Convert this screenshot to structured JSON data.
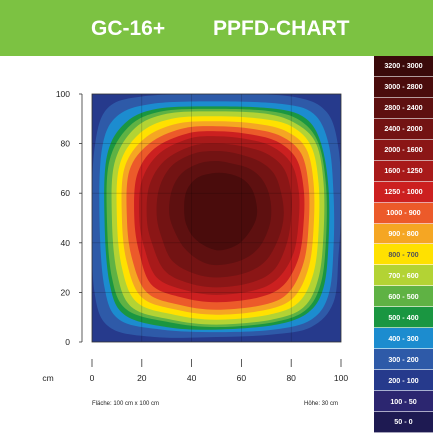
{
  "header": {
    "title_left": "GC-16+",
    "title_right": "PPFD-CHART",
    "background": "#7cc242"
  },
  "legend": [
    {
      "label": "3200 - 3000",
      "color": "#3a0a0a",
      "text_color": "#ffffff"
    },
    {
      "label": "3000 - 2800",
      "color": "#4a0c0c",
      "text_color": "#ffffff"
    },
    {
      "label": "2800 - 2400",
      "color": "#5e1010",
      "text_color": "#ffffff"
    },
    {
      "label": "2400 - 2000",
      "color": "#731313",
      "text_color": "#ffffff"
    },
    {
      "label": "2000 - 1600",
      "color": "#8b1616",
      "text_color": "#ffffff"
    },
    {
      "label": "1600 - 1250",
      "color": "#a81a1a",
      "text_color": "#ffffff"
    },
    {
      "label": "1250 - 1000",
      "color": "#cc2020",
      "text_color": "#ffffff"
    },
    {
      "label": "1000 - 900",
      "color": "#ec5a2a",
      "text_color": "#ffffff"
    },
    {
      "label": "900 - 800",
      "color": "#f5a623",
      "text_color": "#ffffff"
    },
    {
      "label": "800 - 700",
      "color": "#ffe100",
      "text_color": "#555555"
    },
    {
      "label": "700 - 600",
      "color": "#b3d334",
      "text_color": "#ffffff"
    },
    {
      "label": "600 - 500",
      "color": "#5fb244",
      "text_color": "#ffffff"
    },
    {
      "label": "500 - 400",
      "color": "#1a9641",
      "text_color": "#ffffff"
    },
    {
      "label": "400 - 300",
      "color": "#1c8ccf",
      "text_color": "#ffffff"
    },
    {
      "label": "300 - 200",
      "color": "#2e5aa8",
      "text_color": "#ffffff"
    },
    {
      "label": "200 - 100",
      "color": "#263a8c",
      "text_color": "#ffffff"
    },
    {
      "label": "100 - 50",
      "color": "#2c2670",
      "text_color": "#ffffff"
    },
    {
      "label": "50 - 0",
      "color": "#1e1a52",
      "text_color": "#ffffff"
    }
  ],
  "chart_data": {
    "type": "heatmap",
    "title": "PPFD-CHART",
    "xlabel": "cm",
    "ylabel": "",
    "xlim": [
      0,
      100
    ],
    "ylim": [
      0,
      100
    ],
    "x_ticks": [
      0,
      20,
      40,
      60,
      80,
      100
    ],
    "y_ticks": [
      0,
      20,
      40,
      60,
      80,
      100
    ],
    "grid": true,
    "legend_position": "right",
    "contours": [
      {
        "level": "200 - 100",
        "color": "#263a8c",
        "points": [
          [
            0,
            0
          ],
          [
            100,
            0
          ],
          [
            100,
            100
          ],
          [
            0,
            100
          ]
        ]
      },
      {
        "level": "300 - 200",
        "color": "#2e5aa8",
        "points": [
          [
            50,
            2
          ],
          [
            72,
            3
          ],
          [
            88,
            6
          ],
          [
            97,
            16
          ],
          [
            99,
            35
          ],
          [
            100,
            55
          ],
          [
            99,
            78
          ],
          [
            94,
            93
          ],
          [
            80,
            99
          ],
          [
            50,
            100
          ],
          [
            20,
            99
          ],
          [
            6,
            94
          ],
          [
            1,
            78
          ],
          [
            0,
            50
          ],
          [
            1,
            20
          ],
          [
            7,
            6
          ],
          [
            25,
            2
          ]
        ]
      },
      {
        "level": "400 - 300",
        "color": "#1c8ccf",
        "points": [
          [
            50,
            4
          ],
          [
            73,
            5
          ],
          [
            88,
            9
          ],
          [
            95,
            19
          ],
          [
            97,
            38
          ],
          [
            97,
            60
          ],
          [
            95,
            80
          ],
          [
            89,
            92
          ],
          [
            76,
            96
          ],
          [
            50,
            97
          ],
          [
            24,
            96
          ],
          [
            10,
            91
          ],
          [
            4,
            78
          ],
          [
            3,
            50
          ],
          [
            5,
            22
          ],
          [
            11,
            9
          ],
          [
            28,
            5
          ]
        ]
      },
      {
        "level": "500 - 400",
        "color": "#1a9641",
        "points": [
          [
            50,
            5
          ],
          [
            74,
            7
          ],
          [
            87,
            12
          ],
          [
            93,
            22
          ],
          [
            95,
            40
          ],
          [
            95,
            62
          ],
          [
            92,
            80
          ],
          [
            86,
            90
          ],
          [
            74,
            94
          ],
          [
            50,
            95
          ],
          [
            26,
            94
          ],
          [
            13,
            88
          ],
          [
            6,
            75
          ],
          [
            5,
            50
          ],
          [
            7,
            24
          ],
          [
            13,
            11
          ],
          [
            30,
            6
          ]
        ]
      },
      {
        "level": "600 - 500",
        "color": "#5fb244",
        "points": [
          [
            50,
            6
          ],
          [
            73,
            8
          ],
          [
            86,
            13
          ],
          [
            92,
            24
          ],
          [
            94,
            42
          ],
          [
            94,
            63
          ],
          [
            91,
            80
          ],
          [
            84,
            89
          ],
          [
            72,
            93
          ],
          [
            50,
            94
          ],
          [
            28,
            93
          ],
          [
            15,
            87
          ],
          [
            7,
            73
          ],
          [
            6,
            50
          ],
          [
            8,
            26
          ],
          [
            14,
            13
          ],
          [
            31,
            8
          ]
        ]
      },
      {
        "level": "700 - 600",
        "color": "#b3d334",
        "points": [
          [
            50,
            7
          ],
          [
            72,
            9
          ],
          [
            85,
            14
          ],
          [
            91,
            26
          ],
          [
            93,
            44
          ],
          [
            93,
            64
          ],
          [
            90,
            80
          ],
          [
            82,
            88
          ],
          [
            70,
            92
          ],
          [
            50,
            93
          ],
          [
            30,
            92
          ],
          [
            17,
            86
          ],
          [
            9,
            72
          ],
          [
            8,
            50
          ],
          [
            10,
            28
          ],
          [
            16,
            14
          ],
          [
            32,
            9
          ]
        ]
      },
      {
        "level": "800 - 700",
        "color": "#ffe100",
        "points": [
          [
            50,
            9
          ],
          [
            71,
            11
          ],
          [
            83,
            16
          ],
          [
            89,
            28
          ],
          [
            91,
            45
          ],
          [
            91,
            64
          ],
          [
            88,
            79
          ],
          [
            80,
            87
          ],
          [
            68,
            90
          ],
          [
            50,
            91
          ],
          [
            32,
            90
          ],
          [
            19,
            84
          ],
          [
            11,
            71
          ],
          [
            10,
            50
          ],
          [
            12,
            30
          ],
          [
            18,
            16
          ],
          [
            33,
            11
          ]
        ]
      },
      {
        "level": "900 - 800",
        "color": "#f5a623",
        "points": [
          [
            50,
            11
          ],
          [
            70,
            13
          ],
          [
            81,
            18
          ],
          [
            87,
            30
          ],
          [
            89,
            46
          ],
          [
            89,
            64
          ],
          [
            86,
            78
          ],
          [
            78,
            85
          ],
          [
            66,
            88
          ],
          [
            50,
            89
          ],
          [
            34,
            88
          ],
          [
            21,
            82
          ],
          [
            13,
            70
          ],
          [
            12,
            50
          ],
          [
            14,
            32
          ],
          [
            20,
            18
          ],
          [
            34,
            13
          ]
        ]
      },
      {
        "level": "1000 - 900",
        "color": "#ec5a2a",
        "points": [
          [
            50,
            13
          ],
          [
            69,
            15
          ],
          [
            79,
            20
          ],
          [
            85,
            32
          ],
          [
            87,
            47
          ],
          [
            87,
            63
          ],
          [
            84,
            76
          ],
          [
            76,
            83
          ],
          [
            64,
            86
          ],
          [
            50,
            87
          ],
          [
            36,
            86
          ],
          [
            23,
            80
          ],
          [
            15,
            69
          ],
          [
            14,
            50
          ],
          [
            16,
            34
          ],
          [
            22,
            20
          ],
          [
            35,
            15
          ]
        ]
      },
      {
        "level": "1250 - 1000",
        "color": "#cc2020",
        "points": [
          [
            50,
            16
          ],
          [
            67,
            18
          ],
          [
            77,
            23
          ],
          [
            83,
            34
          ],
          [
            85,
            48
          ],
          [
            85,
            62
          ],
          [
            82,
            74
          ],
          [
            74,
            81
          ],
          [
            62,
            84
          ],
          [
            50,
            85
          ],
          [
            38,
            84
          ],
          [
            25,
            78
          ],
          [
            18,
            67
          ],
          [
            17,
            50
          ],
          [
            19,
            36
          ],
          [
            24,
            23
          ],
          [
            36,
            18
          ]
        ]
      },
      {
        "level": "1600 - 1250",
        "color": "#a81a1a",
        "points": [
          [
            50,
            19
          ],
          [
            66,
            21
          ],
          [
            75,
            26
          ],
          [
            81,
            36
          ],
          [
            83,
            49
          ],
          [
            83,
            61
          ],
          [
            80,
            72
          ],
          [
            72,
            79
          ],
          [
            61,
            82
          ],
          [
            50,
            83
          ],
          [
            39,
            82
          ],
          [
            27,
            76
          ],
          [
            20,
            65
          ],
          [
            19,
            50
          ],
          [
            21,
            38
          ],
          [
            26,
            26
          ],
          [
            37,
            21
          ]
        ]
      },
      {
        "level": "2000 - 1600",
        "color": "#8b1616",
        "points": [
          [
            50,
            22
          ],
          [
            64,
            24
          ],
          [
            73,
            29
          ],
          [
            78,
            39
          ],
          [
            80,
            50
          ],
          [
            80,
            60
          ],
          [
            77,
            70
          ],
          [
            70,
            76
          ],
          [
            60,
            79
          ],
          [
            50,
            80
          ],
          [
            40,
            79
          ],
          [
            29,
            73
          ],
          [
            23,
            63
          ],
          [
            22,
            50
          ],
          [
            24,
            40
          ],
          [
            29,
            29
          ],
          [
            38,
            24
          ]
        ]
      },
      {
        "level": "2400 - 2000",
        "color": "#731313",
        "points": [
          [
            50,
            26
          ],
          [
            62,
            28
          ],
          [
            70,
            33
          ],
          [
            75,
            42
          ],
          [
            77,
            51
          ],
          [
            76,
            60
          ],
          [
            73,
            68
          ],
          [
            67,
            73
          ],
          [
            58,
            76
          ],
          [
            50,
            77
          ],
          [
            41,
            76
          ],
          [
            32,
            71
          ],
          [
            27,
            62
          ],
          [
            26,
            51
          ],
          [
            28,
            42
          ],
          [
            32,
            33
          ],
          [
            40,
            28
          ]
        ]
      },
      {
        "level": "2800 - 2400",
        "color": "#5e1010",
        "points": [
          [
            50,
            31
          ],
          [
            60,
            33
          ],
          [
            67,
            38
          ],
          [
            71,
            46
          ],
          [
            72,
            53
          ],
          [
            71,
            60
          ],
          [
            68,
            66
          ],
          [
            63,
            70
          ],
          [
            56,
            72
          ],
          [
            50,
            73
          ],
          [
            43,
            72
          ],
          [
            36,
            68
          ],
          [
            32,
            61
          ],
          [
            31,
            52
          ],
          [
            33,
            45
          ],
          [
            37,
            38
          ],
          [
            43,
            33
          ]
        ]
      },
      {
        "level": "3000 - 2800",
        "color": "#4a0c0c",
        "points": [
          [
            50,
            37
          ],
          [
            58,
            39
          ],
          [
            63,
            44
          ],
          [
            66,
            50
          ],
          [
            66,
            56
          ],
          [
            64,
            62
          ],
          [
            60,
            66
          ],
          [
            54,
            68
          ],
          [
            48,
            68
          ],
          [
            42,
            66
          ],
          [
            38,
            61
          ],
          [
            37,
            54
          ],
          [
            38,
            47
          ],
          [
            42,
            41
          ]
        ]
      }
    ]
  },
  "footnotes": {
    "area": "Fläche: 100 cm x 100 cm",
    "height": "Höhe: 30 cm"
  }
}
